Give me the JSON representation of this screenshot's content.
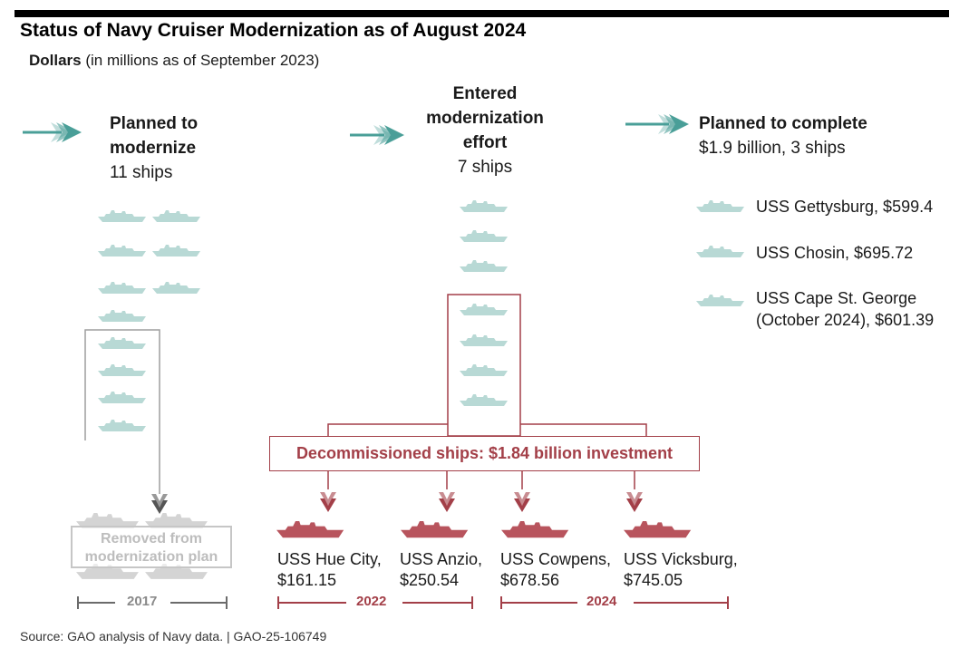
{
  "title": "Status of Navy Cruiser Modernization as of August 2024",
  "subtitle": {
    "bold": "Dollars",
    "rest": " (in millions as of September 2023)"
  },
  "colors": {
    "teal": "#4a9f98",
    "ship_light": "#b8d9d5",
    "decommissioned": "#a33f48",
    "removed": "#c8c8c8"
  },
  "planned": {
    "heading_line1": "Planned to",
    "heading_line2": "modernize",
    "count": "11 ships"
  },
  "entered": {
    "heading_line1": "Entered",
    "heading_line2": "modernization",
    "heading_line3": "effort",
    "count": "7 ships"
  },
  "complete": {
    "heading": "Planned to complete",
    "summary": "$1.9 billion, 3 ships",
    "ships": [
      {
        "line1": "USS Gettysburg, $599.4",
        "line2": ""
      },
      {
        "line1": "USS Chosin, $695.72",
        "line2": ""
      },
      {
        "line1": "USS Cape St. George",
        "line2": "(October 2024), $601.39"
      }
    ]
  },
  "decommissioned": {
    "label": "Decommissioned ships: $1.84 billion investment",
    "ships": [
      {
        "name": "USS Hue City,",
        "cost": "$161.15"
      },
      {
        "name": "USS Anzio,",
        "cost": "$250.54"
      },
      {
        "name": "USS Cowpens,",
        "cost": "$678.56"
      },
      {
        "name": "USS Vicksburg,",
        "cost": "$745.05"
      }
    ]
  },
  "removed": {
    "line1": "Removed from",
    "line2": "modernization plan"
  },
  "years": {
    "removed": "2017",
    "first": "2022",
    "second": "2024"
  },
  "source": "Source: GAO analysis of Navy data.  |  GAO-25-106749"
}
